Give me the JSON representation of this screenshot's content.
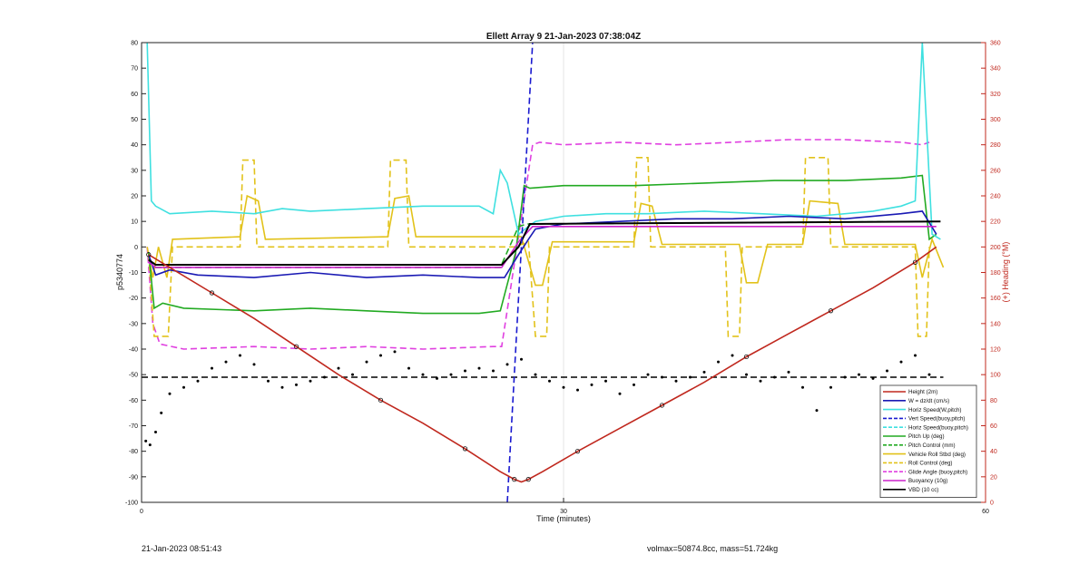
{
  "chart_data": {
    "type": "line",
    "title": "Ellett Array 9 21-Jan-2023 07:38:04Z",
    "xlabel": "Time (minutes)",
    "ylabel": "p5340774",
    "y2label": "(+) Heading (°M)",
    "xlim": [
      0,
      60
    ],
    "ylim": [
      -100,
      80
    ],
    "y2lim": [
      0,
      360
    ],
    "xticks": [
      0,
      30,
      60
    ],
    "yticks": [
      -100,
      -90,
      -80,
      -70,
      -60,
      -50,
      -40,
      -30,
      -20,
      -10,
      0,
      10,
      20,
      30,
      40,
      50,
      60,
      70,
      80
    ],
    "y2ticks": [
      0,
      20,
      40,
      60,
      80,
      100,
      120,
      140,
      160,
      180,
      200,
      220,
      240,
      260,
      280,
      300,
      320,
      340,
      360
    ],
    "grid": true,
    "legend_position": "bottom-right",
    "colors": {
      "height": "#c0281e",
      "w": "#1a1ab4",
      "horiz": "#3fe0e0",
      "vert": "#1a1ad0",
      "pitch": "#22aa22",
      "roll": "#e2c21a",
      "glide": "#e040e0",
      "buoy": "#cc22cc",
      "vbd": "#000000",
      "right_axis": "#c0281e"
    },
    "series": [
      {
        "name": "Height (2m)",
        "key": "height",
        "style": "solid",
        "axis": "left",
        "x": [
          0.5,
          2,
          5,
          8,
          11,
          14,
          17,
          20,
          23,
          25.5,
          26.5,
          27,
          27.5,
          28.5,
          31,
          34,
          37,
          40,
          43,
          46,
          49,
          52,
          55,
          56.5
        ],
        "y": [
          -3,
          -8,
          -18,
          -28,
          -39,
          -50,
          -60,
          -69,
          -79,
          -88,
          -91,
          -92,
          -91,
          -88,
          -80,
          -71,
          -62,
          -53,
          -43,
          -34,
          -25,
          -16,
          -6,
          0
        ]
      },
      {
        "name": "W = dz/dt (cm/s)",
        "key": "w",
        "style": "solid",
        "axis": "left",
        "x": [
          0.5,
          1,
          2,
          4,
          8,
          12,
          16,
          20,
          24,
          25.8,
          26.8,
          27.5,
          28,
          30,
          34,
          38,
          42,
          46,
          50,
          54,
          55.5,
          56.5
        ],
        "y": [
          -3,
          -11,
          -9,
          -11,
          -12,
          -10,
          -12,
          -11,
          -12,
          -12,
          -3,
          3,
          7,
          9,
          10,
          11,
          11,
          12,
          11,
          13,
          14,
          5
        ]
      },
      {
        "name": "Horiz Speed(W,pitch)",
        "key": "horiz",
        "style": "solid",
        "axis": "left",
        "x": [
          0.4,
          0.7,
          1,
          2,
          5,
          8,
          10,
          12,
          16,
          20,
          24,
          25,
          25.5,
          26,
          26.8,
          27.5,
          28,
          30,
          33,
          36,
          40,
          44,
          48,
          52,
          54,
          55,
          55.5,
          56.2,
          56.8
        ],
        "y": [
          80,
          18,
          16,
          13,
          14,
          13,
          15,
          14,
          15,
          16,
          16,
          13,
          30,
          25,
          5,
          8,
          10,
          12,
          13,
          13,
          14,
          13,
          12,
          14,
          16,
          18,
          80,
          5,
          3
        ]
      },
      {
        "name": "Vert Speed(buoy,pitch)",
        "key": "vert",
        "style": "dashed",
        "axis": "left",
        "x": [
          26,
          27.8
        ],
        "y": [
          -100,
          80
        ]
      },
      {
        "name": "Horiz Speed(buoy,pitch)",
        "key": "horiz2",
        "style": "dashed",
        "axis": "left",
        "x": [],
        "y": []
      },
      {
        "name": "Pitch Up (deg)",
        "key": "pitch",
        "style": "solid",
        "axis": "left",
        "x": [
          0.5,
          0.9,
          1.5,
          3,
          8,
          12,
          16,
          20,
          24,
          25.5,
          26.6,
          27.2,
          27.6,
          30,
          35,
          40,
          45,
          50,
          54,
          55.5,
          56,
          56.5
        ],
        "y": [
          -2,
          -24,
          -22,
          -24,
          -25,
          -24,
          -25,
          -26,
          -26,
          -25,
          -2,
          24,
          23,
          24,
          24,
          25,
          26,
          26,
          27,
          28,
          3,
          5
        ]
      },
      {
        "name": "Pitch Control (mm)",
        "key": "pitch2",
        "style": "dashed",
        "axis": "left",
        "x": [
          0.5,
          1,
          25.5,
          26.8,
          27.4,
          56.5
        ],
        "y": [
          -5,
          -8,
          -8,
          8,
          9,
          10
        ]
      },
      {
        "name": "Vehicle Roll Stbd (deg)",
        "key": "roll",
        "style": "solid",
        "axis": "left",
        "x": [
          0.4,
          0.8,
          1.2,
          1.8,
          2.2,
          7,
          7.5,
          8.3,
          8.8,
          17.5,
          18,
          19,
          19.5,
          27,
          28,
          28.5,
          29.2,
          35,
          35.5,
          36.3,
          37,
          42.5,
          43,
          43.8,
          44.5,
          47,
          47.5,
          49.5,
          50,
          55,
          55.5,
          56.2,
          57
        ],
        "y": [
          0,
          -12,
          0,
          -12,
          3,
          4,
          20,
          18,
          3,
          4,
          19,
          20,
          4,
          4,
          -15,
          -15,
          2,
          2,
          17,
          16,
          1,
          1,
          -14,
          -14,
          1,
          1,
          18,
          17,
          1,
          1,
          -12,
          3,
          -8
        ]
      },
      {
        "name": "Roll Control (deg)",
        "key": "roll2",
        "style": "dashed",
        "axis": "left",
        "x": [
          0.5,
          0.9,
          1.5,
          1.9,
          2.2,
          7,
          7.2,
          8,
          8.2,
          17.5,
          17.7,
          18.8,
          19,
          25.5,
          26.5,
          27.5,
          28,
          28.8,
          29,
          35,
          35.2,
          36,
          36.2,
          41.5,
          41.7,
          42.5,
          42.7,
          47,
          47.2,
          48.8,
          49,
          55,
          55.2,
          55.8,
          56
        ],
        "y": [
          -3,
          -35,
          -35,
          -35,
          0,
          0,
          34,
          34,
          0,
          0,
          34,
          34,
          0,
          0,
          0,
          2,
          -35,
          -35,
          0,
          0,
          35,
          35,
          0,
          0,
          -35,
          -35,
          0,
          0,
          35,
          35,
          0,
          0,
          -35,
          -35,
          0
        ]
      },
      {
        "name": "Glide Angle (buoy,pitch)",
        "key": "glide",
        "style": "dashed",
        "axis": "left",
        "x": [
          0.4,
          0.8,
          1.3,
          3,
          8,
          12,
          16,
          20,
          25,
          25.6,
          27.8,
          28.3,
          30,
          34,
          38,
          42,
          46,
          50,
          54,
          55.5,
          56
        ],
        "y": [
          0,
          -30,
          -38,
          -40,
          -39,
          -40,
          -39,
          -40,
          -39,
          -39,
          40,
          41,
          40,
          41,
          40,
          41,
          42,
          42,
          41,
          40,
          41
        ]
      },
      {
        "name": "Buoyancy (10g)",
        "key": "buoy",
        "style": "solid",
        "axis": "left",
        "x": [
          0.5,
          1,
          25.6,
          26.8,
          27.8,
          56.5
        ],
        "y": [
          -6,
          -8,
          -8,
          2,
          8,
          8
        ]
      },
      {
        "name": "VBD (10 cc)",
        "key": "vbd",
        "style": "solid",
        "axis": "left",
        "x": [
          0.5,
          1,
          25.6,
          26.8,
          27.6,
          56.8
        ],
        "y": [
          -5,
          -7,
          -7,
          0,
          9,
          10
        ]
      },
      {
        "name": "Heading",
        "key": "heading",
        "style": "dots",
        "axis": "right",
        "x": [
          0.3,
          0.6,
          1,
          1.4,
          2,
          3,
          4,
          5,
          6,
          7,
          8,
          9,
          10,
          11,
          12,
          13,
          14,
          15,
          16,
          17,
          18,
          19,
          20,
          21,
          22,
          23,
          24,
          25,
          26,
          27,
          28,
          29,
          30,
          31,
          32,
          33,
          34,
          35,
          36,
          37,
          38,
          39,
          40,
          41,
          42,
          43,
          44,
          45,
          46,
          47,
          48,
          49,
          50,
          51,
          52,
          53,
          54,
          55,
          56
        ],
        "y": [
          48,
          45,
          55,
          70,
          85,
          90,
          95,
          105,
          110,
          115,
          108,
          95,
          90,
          92,
          95,
          98,
          105,
          100,
          110,
          115,
          118,
          105,
          100,
          97,
          100,
          103,
          105,
          103,
          108,
          112,
          100,
          95,
          90,
          88,
          92,
          95,
          85,
          92,
          100,
          98,
          95,
          98,
          102,
          110,
          115,
          100,
          95,
          98,
          102,
          90,
          72,
          90,
          98,
          100,
          97,
          103,
          110,
          115,
          100
        ]
      },
      {
        "name": "Heading target",
        "key": "heading_target",
        "style": "dashed",
        "axis": "right",
        "x": [
          0,
          57
        ],
        "y": [
          98,
          98
        ]
      }
    ],
    "legend": [
      {
        "label": "Height (2m)",
        "key": "height",
        "style": "solid"
      },
      {
        "label": "W = dz/dt (cm/s)",
        "key": "w",
        "style": "solid"
      },
      {
        "label": "Horiz Speed(W,pitch)",
        "key": "horiz",
        "style": "solid"
      },
      {
        "label": "Vert Speed(buoy,pitch)",
        "key": "vert",
        "style": "dashed"
      },
      {
        "label": "Horiz Speed(buoy,pitch)",
        "key": "horiz",
        "style": "dashed"
      },
      {
        "label": "Pitch Up (deg)",
        "key": "pitch",
        "style": "solid"
      },
      {
        "label": "Pitch Control (mm)",
        "key": "pitch",
        "style": "dashed"
      },
      {
        "label": "Vehicle Roll Stbd (deg)",
        "key": "roll",
        "style": "solid"
      },
      {
        "label": "Roll Control (deg)",
        "key": "roll",
        "style": "dashed"
      },
      {
        "label": "Glide Angle (buoy,pitch)",
        "key": "glide",
        "style": "dashed"
      },
      {
        "label": "Buoyancy (10g)",
        "key": "buoy",
        "style": "solid"
      },
      {
        "label": "VBD (10 cc)",
        "key": "vbd",
        "style": "solid"
      }
    ]
  },
  "footer": {
    "left": "21-Jan-2023 08:51:43",
    "right": "volmax=50874.8cc, mass=51.724kg"
  }
}
